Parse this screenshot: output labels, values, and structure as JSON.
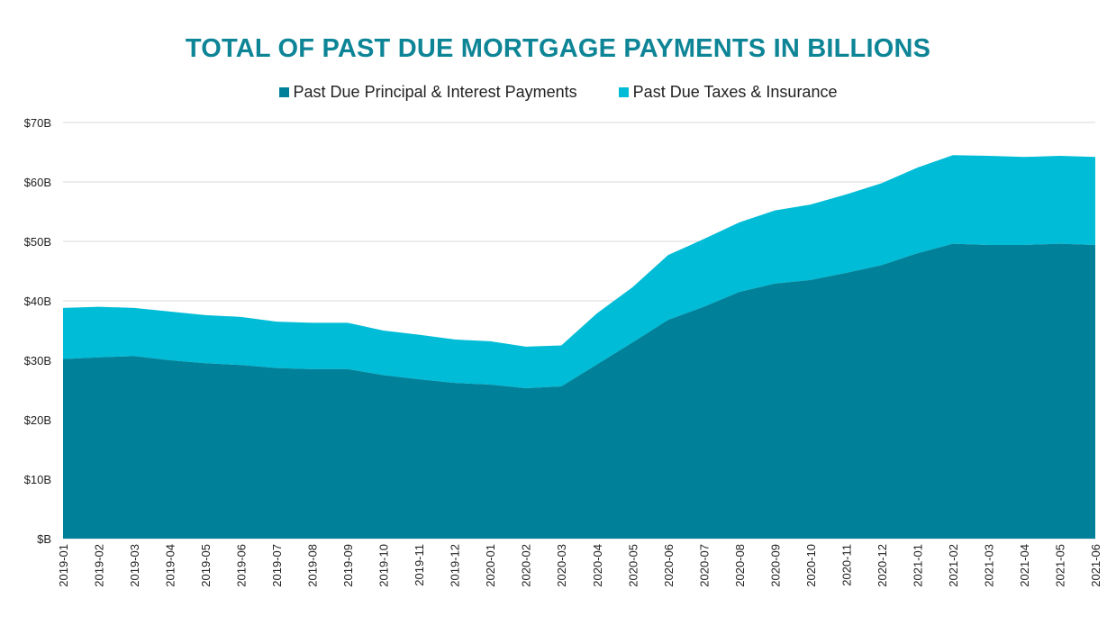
{
  "colors": {
    "title": "#0d8596",
    "principal": "#008199",
    "taxes": "#00bcd6",
    "grid": "#d9d9d9"
  },
  "chart_data": {
    "type": "area",
    "stacked": true,
    "title": "TOTAL OF PAST DUE MORTGAGE PAYMENTS IN BILLIONS",
    "xlabel": "",
    "ylabel": "",
    "ylim": [
      0,
      70
    ],
    "yticks": [
      0,
      10,
      20,
      30,
      40,
      50,
      60,
      70
    ],
    "ytick_labels": [
      "$B",
      "$10B",
      "$20B",
      "$30B",
      "$40B",
      "$50B",
      "$60B",
      "$70B"
    ],
    "grid": true,
    "legend_position": "top",
    "categories": [
      "2019-01",
      "2019-02",
      "2019-03",
      "2019-04",
      "2019-05",
      "2019-06",
      "2019-07",
      "2019-08",
      "2019-09",
      "2019-10",
      "2019-11",
      "2019-12",
      "2020-01",
      "2020-02",
      "2020-03",
      "2020-04",
      "2020-05",
      "2020-06",
      "2020-07",
      "2020-08",
      "2020-09",
      "2020-10",
      "2020-11",
      "2020-12",
      "2021-01",
      "2021-02",
      "2021-03",
      "2021-04",
      "2021-05",
      "2021-06"
    ],
    "series": [
      {
        "name": "Past Due Principal & Interest Payments",
        "values": [
          30.2,
          30.5,
          30.7,
          30.0,
          29.5,
          29.2,
          28.7,
          28.5,
          28.5,
          27.5,
          26.8,
          26.2,
          25.9,
          25.3,
          25.6,
          29.3,
          33.0,
          36.8,
          39.0,
          41.5,
          42.9,
          43.5,
          44.7,
          46.0,
          48.0,
          49.6,
          49.4,
          49.4,
          49.6,
          49.4
        ]
      },
      {
        "name": "Past Due Taxes & Insurance",
        "values": [
          8.6,
          8.5,
          8.1,
          8.2,
          8.1,
          8.1,
          7.8,
          7.8,
          7.8,
          7.5,
          7.5,
          7.3,
          7.3,
          7.0,
          6.9,
          8.6,
          9.3,
          10.9,
          11.4,
          11.7,
          12.3,
          12.7,
          13.2,
          13.8,
          14.4,
          14.9,
          15.0,
          14.8,
          14.8,
          14.8
        ]
      }
    ]
  }
}
